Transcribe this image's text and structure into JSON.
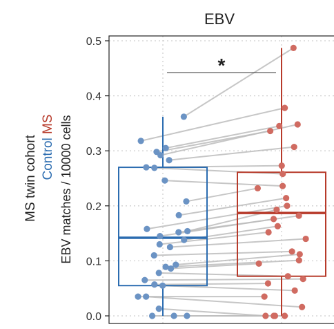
{
  "chart_data": {
    "type": "box",
    "title": "EBV",
    "ylabel": "EBV matches / 10000 cells",
    "side_label": {
      "line1": "MS twin cohort",
      "control_word": "Control",
      "ms_word": "MS"
    },
    "ylim": [
      0,
      0.5
    ],
    "yticks": [
      "0.0",
      "0.1",
      "0.2",
      "0.3",
      "0.4",
      "0.5"
    ],
    "grid": true,
    "significance": "*",
    "colors": {
      "control": "#2b6cb0",
      "control_points": "#6b93c4",
      "ms": "#b73a2a",
      "ms_points": "#d06b61",
      "pair_line": "#bdbdbd",
      "grid": "#cfcfcf",
      "text": "#222222"
    },
    "groups": [
      {
        "name": "Control",
        "box": {
          "min": 0.0,
          "q1": 0.055,
          "median": 0.142,
          "q3": 0.27,
          "max": 0.362
        }
      },
      {
        "name": "MS",
        "box": {
          "min": 0.0,
          "q1": 0.072,
          "median": 0.187,
          "q3": 0.261,
          "max": 0.487
        }
      }
    ],
    "pairs": [
      {
        "control": 0.362,
        "ms": 0.487
      },
      {
        "control": 0.318,
        "ms": 0.378
      },
      {
        "control": 0.305,
        "ms": 0.345
      },
      {
        "control": 0.298,
        "ms": 0.336
      },
      {
        "control": 0.292,
        "ms": 0.348
      },
      {
        "control": 0.283,
        "ms": 0.307
      },
      {
        "control": 0.27,
        "ms": 0.273
      },
      {
        "control": 0.269,
        "ms": 0.258
      },
      {
        "control": 0.246,
        "ms": 0.236
      },
      {
        "control": 0.208,
        "ms": 0.232
      },
      {
        "control": 0.183,
        "ms": 0.214
      },
      {
        "control": 0.158,
        "ms": 0.2
      },
      {
        "control": 0.154,
        "ms": 0.193
      },
      {
        "control": 0.152,
        "ms": 0.182
      },
      {
        "control": 0.145,
        "ms": 0.176
      },
      {
        "control": 0.138,
        "ms": 0.163
      },
      {
        "control": 0.13,
        "ms": 0.152
      },
      {
        "control": 0.125,
        "ms": 0.14
      },
      {
        "control": 0.11,
        "ms": 0.117
      },
      {
        "control": 0.093,
        "ms": 0.112
      },
      {
        "control": 0.089,
        "ms": 0.101
      },
      {
        "control": 0.086,
        "ms": 0.095
      },
      {
        "control": 0.078,
        "ms": 0.072
      },
      {
        "control": 0.065,
        "ms": 0.067
      },
      {
        "control": 0.057,
        "ms": 0.059
      },
      {
        "control": 0.055,
        "ms": 0.046
      },
      {
        "control": 0.035,
        "ms": 0.035
      },
      {
        "control": 0.035,
        "ms": 0.016
      },
      {
        "control": 0.013,
        "ms": 0.0
      },
      {
        "control": 0.0,
        "ms": 0.0
      },
      {
        "control": 0.0,
        "ms": 0.0
      },
      {
        "control": 0.0,
        "ms": 0.0
      }
    ]
  }
}
